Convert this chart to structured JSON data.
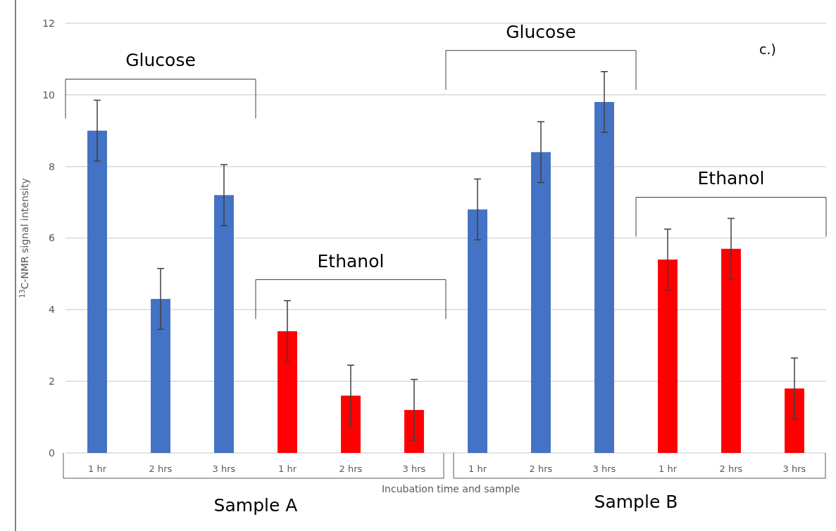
{
  "chart_data": {
    "type": "bar",
    "xlabel": "Incubation time and sample",
    "ylabel": "$^{13}$C-NMR signal intensity",
    "categories": [
      "1 hr",
      "2 hrs",
      "3 hrs",
      "1 hr",
      "2 hrs",
      "3 hrs",
      "1 hr",
      "2 hrs",
      "3 hrs",
      "1 hr",
      "2 hrs",
      "3 hrs"
    ],
    "values": [
      9.0,
      4.3,
      7.2,
      3.4,
      1.6,
      1.2,
      6.8,
      8.4,
      9.8,
      5.4,
      5.7,
      1.8
    ],
    "colors": [
      "#4472c4",
      "#4472c4",
      "#4472c4",
      "#ff0000",
      "#ff0000",
      "#ff0000",
      "#4472c4",
      "#4472c4",
      "#4472c4",
      "#ff0000",
      "#ff0000",
      "#ff0000"
    ],
    "errors": [
      0.85,
      0.85,
      0.85,
      0.85,
      0.85,
      0.85,
      0.85,
      0.85,
      0.85,
      0.85,
      0.85,
      0.85
    ],
    "ylim": [
      0,
      12
    ],
    "yticks": [
      0,
      2,
      4,
      6,
      8,
      10,
      12
    ],
    "grid": "y",
    "annotations": [
      "Glucose",
      "Ethanol",
      "Glucose",
      "Ethanol",
      "c.)",
      "Sample A",
      "Sample B"
    ]
  }
}
